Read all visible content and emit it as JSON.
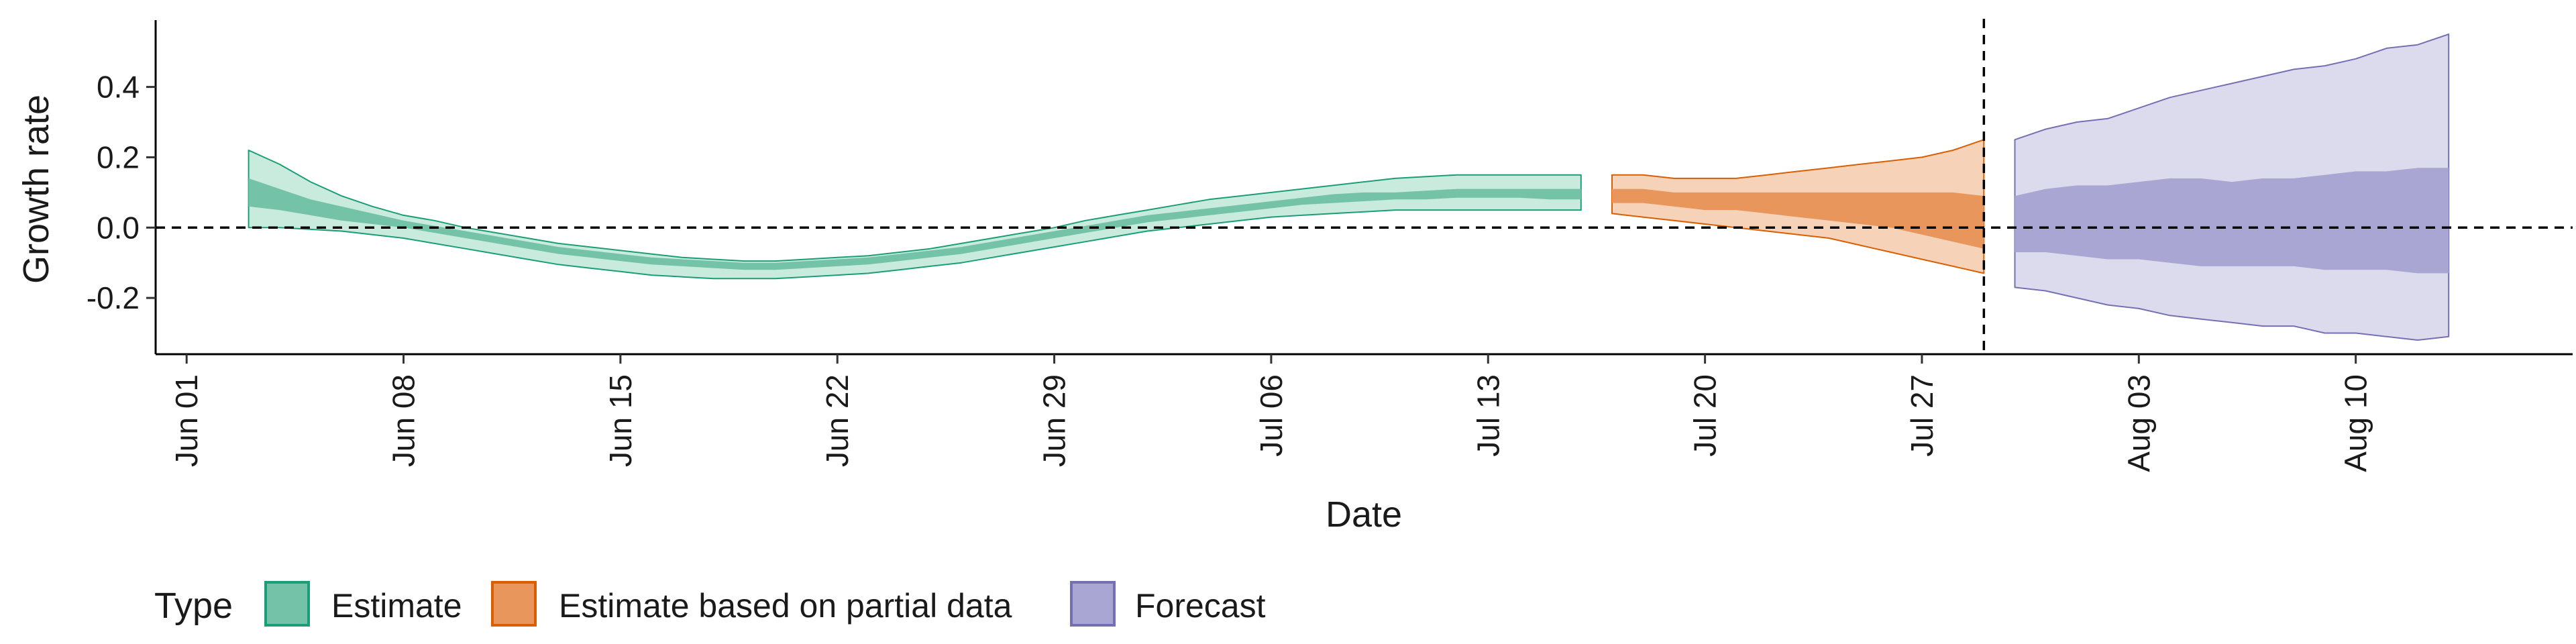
{
  "chart_data": {
    "type": "area",
    "title": "",
    "xlabel": "Date",
    "ylabel": "Growth rate",
    "x_tick_labels": [
      "Jun 01",
      "Jun 08",
      "Jun 15",
      "Jun 22",
      "Jun 29",
      "Jul 06",
      "Jul 13",
      "Jul 20",
      "Jul 27",
      "Aug 03",
      "Aug 10"
    ],
    "x_range": [
      "2020-05-31",
      "2020-08-17"
    ],
    "y_ticks": [
      -0.2,
      0.0,
      0.2,
      0.4
    ],
    "y_tick_labels": [
      "-0.2",
      "0.0",
      "0.2",
      "0.4"
    ],
    "ylim": [
      -0.36,
      0.59
    ],
    "reference_lines": [
      {
        "type": "horizontal",
        "y": 0.0,
        "style": "dashed"
      },
      {
        "type": "vertical",
        "x": "2020-07-29",
        "style": "dashed"
      }
    ],
    "legend": {
      "title": "Type",
      "position": "bottom",
      "entries": [
        "Estimate",
        "Estimate based on partial data",
        "Forecast"
      ]
    },
    "series": [
      {
        "name": "Estimate",
        "colors": {
          "outer": "#c9ebdd",
          "inner": "#74c3a8",
          "line": "#1b9e77"
        },
        "x": [
          "2020-06-03",
          "2020-06-04",
          "2020-06-05",
          "2020-06-06",
          "2020-06-07",
          "2020-06-08",
          "2020-06-09",
          "2020-06-10",
          "2020-06-11",
          "2020-06-12",
          "2020-06-13",
          "2020-06-14",
          "2020-06-15",
          "2020-06-16",
          "2020-06-17",
          "2020-06-18",
          "2020-06-19",
          "2020-06-20",
          "2020-06-21",
          "2020-06-22",
          "2020-06-23",
          "2020-06-24",
          "2020-06-25",
          "2020-06-26",
          "2020-06-27",
          "2020-06-28",
          "2020-06-29",
          "2020-06-30",
          "2020-07-01",
          "2020-07-02",
          "2020-07-03",
          "2020-07-04",
          "2020-07-05",
          "2020-07-06",
          "2020-07-07",
          "2020-07-08",
          "2020-07-09",
          "2020-07-10",
          "2020-07-11",
          "2020-07-12",
          "2020-07-13",
          "2020-07-14",
          "2020-07-15",
          "2020-07-16"
        ],
        "outer_upper": [
          0.22,
          0.18,
          0.13,
          0.09,
          0.06,
          0.035,
          0.02,
          0.0,
          -0.015,
          -0.03,
          -0.045,
          -0.055,
          -0.065,
          -0.075,
          -0.085,
          -0.09,
          -0.095,
          -0.095,
          -0.09,
          -0.085,
          -0.08,
          -0.07,
          -0.06,
          -0.045,
          -0.03,
          -0.015,
          0.0,
          0.02,
          0.035,
          0.05,
          0.065,
          0.08,
          0.09,
          0.1,
          0.11,
          0.12,
          0.13,
          0.14,
          0.145,
          0.15,
          0.15,
          0.15,
          0.15,
          0.15
        ],
        "inner_upper": [
          0.14,
          0.11,
          0.08,
          0.06,
          0.04,
          0.02,
          0.005,
          -0.01,
          -0.025,
          -0.04,
          -0.055,
          -0.065,
          -0.075,
          -0.085,
          -0.09,
          -0.095,
          -0.1,
          -0.1,
          -0.095,
          -0.09,
          -0.085,
          -0.075,
          -0.065,
          -0.055,
          -0.04,
          -0.025,
          -0.01,
          0.005,
          0.02,
          0.035,
          0.045,
          0.055,
          0.065,
          0.075,
          0.085,
          0.095,
          0.1,
          0.1,
          0.105,
          0.11,
          0.11,
          0.11,
          0.11,
          0.11
        ],
        "inner_lower": [
          0.06,
          0.05,
          0.035,
          0.02,
          0.01,
          0.0,
          -0.015,
          -0.03,
          -0.045,
          -0.06,
          -0.075,
          -0.085,
          -0.095,
          -0.105,
          -0.11,
          -0.115,
          -0.12,
          -0.12,
          -0.115,
          -0.11,
          -0.105,
          -0.095,
          -0.085,
          -0.075,
          -0.06,
          -0.045,
          -0.03,
          -0.015,
          0.0,
          0.015,
          0.025,
          0.035,
          0.045,
          0.055,
          0.065,
          0.07,
          0.075,
          0.08,
          0.08,
          0.085,
          0.085,
          0.085,
          0.08,
          0.08
        ],
        "outer_lower": [
          0.0,
          0.0,
          -0.005,
          -0.01,
          -0.02,
          -0.03,
          -0.045,
          -0.06,
          -0.075,
          -0.09,
          -0.105,
          -0.115,
          -0.125,
          -0.135,
          -0.14,
          -0.145,
          -0.145,
          -0.145,
          -0.14,
          -0.135,
          -0.13,
          -0.12,
          -0.11,
          -0.1,
          -0.085,
          -0.07,
          -0.055,
          -0.04,
          -0.025,
          -0.01,
          0.0,
          0.01,
          0.02,
          0.03,
          0.035,
          0.04,
          0.045,
          0.05,
          0.05,
          0.05,
          0.05,
          0.05,
          0.05,
          0.05
        ]
      },
      {
        "name": "Estimate based on partial data",
        "colors": {
          "outer": "#f6d3b8",
          "inner": "#e8965c",
          "line": "#d95f02"
        },
        "x": [
          "2020-07-17",
          "2020-07-18",
          "2020-07-19",
          "2020-07-20",
          "2020-07-21",
          "2020-07-22",
          "2020-07-23",
          "2020-07-24",
          "2020-07-25",
          "2020-07-26",
          "2020-07-27",
          "2020-07-28",
          "2020-07-29"
        ],
        "outer_upper": [
          0.15,
          0.15,
          0.14,
          0.14,
          0.14,
          0.15,
          0.16,
          0.17,
          0.18,
          0.19,
          0.2,
          0.22,
          0.25
        ],
        "inner_upper": [
          0.11,
          0.11,
          0.1,
          0.1,
          0.1,
          0.1,
          0.1,
          0.1,
          0.1,
          0.1,
          0.1,
          0.1,
          0.09
        ],
        "inner_lower": [
          0.07,
          0.07,
          0.06,
          0.05,
          0.05,
          0.04,
          0.03,
          0.02,
          0.01,
          0.0,
          -0.02,
          -0.04,
          -0.06
        ],
        "outer_lower": [
          0.04,
          0.03,
          0.02,
          0.01,
          0.0,
          -0.01,
          -0.02,
          -0.03,
          -0.05,
          -0.07,
          -0.09,
          -0.11,
          -0.13
        ]
      },
      {
        "name": "Forecast",
        "colors": {
          "outer": "#dcdaed",
          "inner": "#aaa6d3",
          "line": "#7570b3"
        },
        "x": [
          "2020-07-30",
          "2020-07-31",
          "2020-08-01",
          "2020-08-02",
          "2020-08-03",
          "2020-08-04",
          "2020-08-05",
          "2020-08-06",
          "2020-08-07",
          "2020-08-08",
          "2020-08-09",
          "2020-08-10",
          "2020-08-11",
          "2020-08-12",
          "2020-08-13"
        ],
        "outer_upper": [
          0.25,
          0.28,
          0.3,
          0.31,
          0.34,
          0.37,
          0.39,
          0.41,
          0.43,
          0.45,
          0.46,
          0.48,
          0.51,
          0.52,
          0.55
        ],
        "inner_upper": [
          0.09,
          0.11,
          0.12,
          0.12,
          0.13,
          0.14,
          0.14,
          0.13,
          0.14,
          0.14,
          0.15,
          0.16,
          0.16,
          0.17,
          0.17
        ],
        "inner_lower": [
          -0.07,
          -0.07,
          -0.08,
          -0.09,
          -0.09,
          -0.1,
          -0.11,
          -0.11,
          -0.11,
          -0.11,
          -0.12,
          -0.12,
          -0.12,
          -0.13,
          -0.13
        ],
        "outer_lower": [
          -0.17,
          -0.18,
          -0.2,
          -0.22,
          -0.23,
          -0.25,
          -0.26,
          -0.27,
          -0.28,
          -0.28,
          -0.3,
          -0.3,
          -0.31,
          -0.32,
          -0.31
        ]
      }
    ]
  }
}
